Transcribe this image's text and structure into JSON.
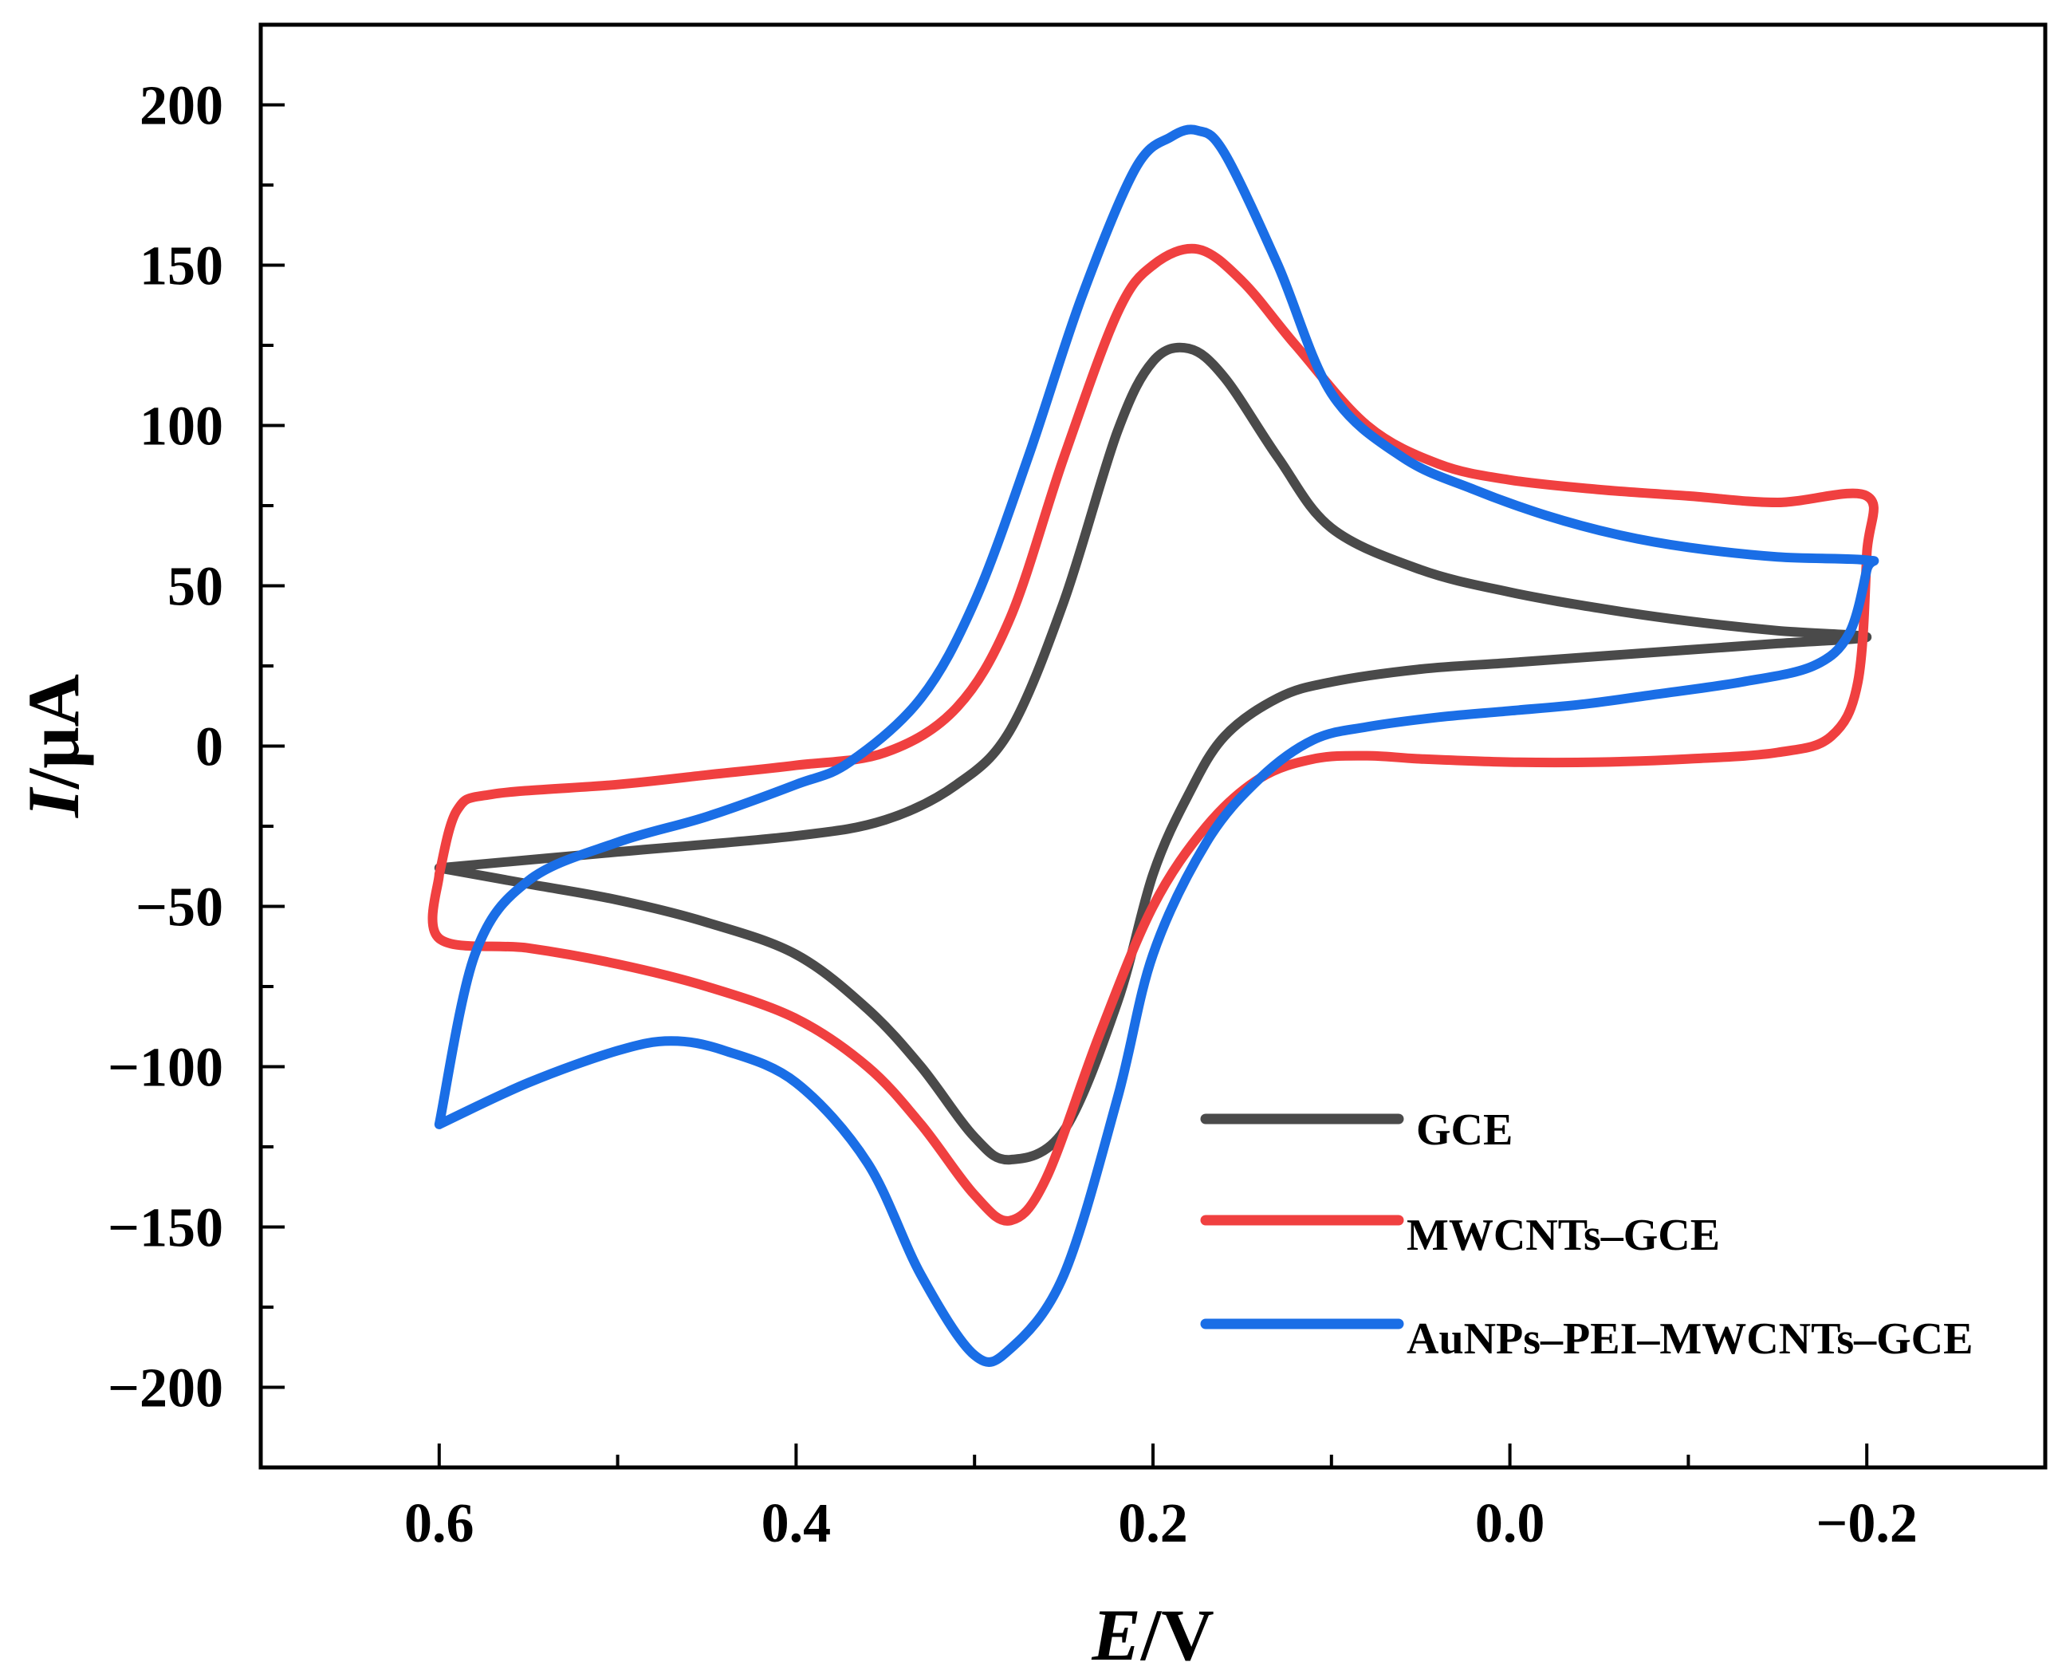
{
  "chart_data": {
    "type": "line",
    "title": "",
    "xlabel_italic": "E",
    "xlabel_unit": "/V",
    "ylabel_italic": "I",
    "ylabel_unit": "/μA",
    "xlim": [
      0.7,
      -0.3
    ],
    "ylim": [
      -225,
      225
    ],
    "x_ticks": [
      0.6,
      0.4,
      0.2,
      0.0,
      -0.2
    ],
    "x_tick_labels": [
      "0.6",
      "0.4",
      "0.2",
      "0.0",
      "−0.2"
    ],
    "y_ticks": [
      200,
      150,
      100,
      50,
      0,
      -50,
      -100,
      -150,
      -200
    ],
    "y_tick_labels": [
      "200",
      "150",
      "100",
      "50",
      "0",
      "−50",
      "−100",
      "−150",
      "−200"
    ],
    "grid": false,
    "legend_position": "bottom-right",
    "series": [
      {
        "name": "GCE",
        "color": "#4a4a4a",
        "x": [
          0.6,
          0.5,
          0.4,
          0.35,
          0.31,
          0.28,
          0.25,
          0.22,
          0.2,
          0.18,
          0.16,
          0.13,
          0.1,
          0.05,
          0.0,
          -0.05,
          -0.1,
          -0.15,
          -0.2,
          -0.15,
          -0.1,
          -0.05,
          0.0,
          0.05,
          0.1,
          0.13,
          0.16,
          0.18,
          0.2,
          0.22,
          0.25,
          0.28,
          0.3,
          0.33,
          0.36,
          0.4,
          0.45,
          0.5,
          0.55,
          0.6
        ],
        "y": [
          -38,
          -33,
          -28,
          -23,
          -12,
          5,
          45,
          98,
          120,
          124,
          115,
          90,
          68,
          55,
          48,
          43,
          39,
          36,
          34,
          32,
          30,
          28,
          26,
          24,
          20,
          15,
          3,
          -15,
          -40,
          -80,
          -120,
          -129,
          -122,
          -100,
          -82,
          -65,
          -55,
          -48,
          -43,
          -38
        ]
      },
      {
        "name": "MWCNTs–GCE",
        "color": "#f04040",
        "x": [
          0.6,
          0.59,
          0.57,
          0.5,
          0.45,
          0.4,
          0.35,
          0.31,
          0.28,
          0.25,
          0.22,
          0.2,
          0.175,
          0.15,
          0.12,
          0.08,
          0.04,
          0.0,
          -0.05,
          -0.1,
          -0.15,
          -0.2,
          -0.2,
          -0.195,
          -0.18,
          -0.15,
          -0.1,
          -0.05,
          0.0,
          0.05,
          0.08,
          0.11,
          0.14,
          0.17,
          0.2,
          0.23,
          0.26,
          0.28,
          0.3,
          0.33,
          0.36,
          0.4,
          0.45,
          0.5,
          0.55,
          0.6,
          0.6
        ],
        "y": [
          -40,
          -20,
          -15,
          -12,
          -9,
          -6,
          -2,
          12,
          40,
          90,
          135,
          150,
          155,
          145,
          125,
          100,
          88,
          83,
          80,
          78,
          76,
          78,
          60,
          20,
          3,
          -2,
          -4,
          -5,
          -5,
          -4,
          -3,
          -4,
          -10,
          -25,
          -50,
          -90,
          -135,
          -148,
          -140,
          -118,
          -100,
          -85,
          -75,
          -68,
          -63,
          -60,
          -40
        ]
      },
      {
        "name": "AuNPs–PEI–MWCNTs–GCE",
        "color": "#1a6ee6",
        "x": [
          0.6,
          0.58,
          0.55,
          0.5,
          0.45,
          0.4,
          0.37,
          0.33,
          0.3,
          0.27,
          0.24,
          0.21,
          0.19,
          0.175,
          0.16,
          0.13,
          0.1,
          0.06,
          0.02,
          -0.02,
          -0.06,
          -0.1,
          -0.15,
          -0.2,
          -0.2,
          -0.19,
          -0.17,
          -0.13,
          -0.08,
          -0.04,
          0.0,
          0.04,
          0.08,
          0.11,
          0.14,
          0.17,
          0.2,
          0.22,
          0.25,
          0.28,
          0.3,
          0.33,
          0.36,
          0.4,
          0.44,
          0.47,
          0.5,
          0.55,
          0.6
        ],
        "y": [
          -118,
          -65,
          -42,
          -30,
          -22,
          -12,
          -5,
          15,
          45,
          90,
          140,
          180,
          190,
          192,
          185,
          150,
          110,
          90,
          80,
          72,
          66,
          62,
          59,
          58,
          55,
          35,
          25,
          20,
          16,
          13,
          11,
          9,
          6,
          2,
          -10,
          -30,
          -65,
          -110,
          -165,
          -188,
          -190,
          -165,
          -130,
          -105,
          -95,
          -92,
          -95,
          -105,
          -118
        ]
      }
    ]
  }
}
